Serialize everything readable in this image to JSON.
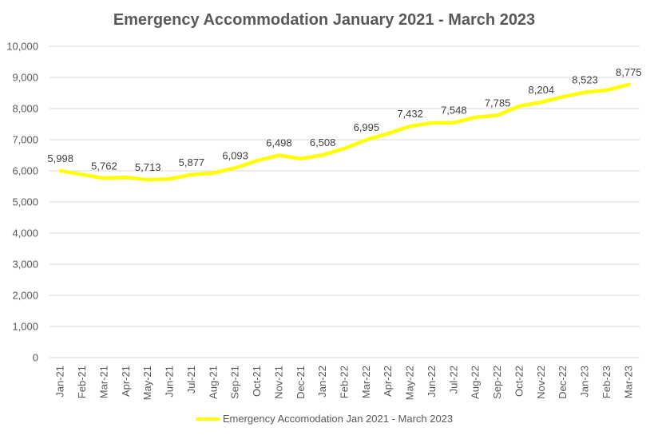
{
  "chart_data": {
    "type": "line",
    "title": "Emergency Accommodation January 2021 - March 2023",
    "xlabel": "",
    "ylabel": "",
    "ylim": [
      0,
      10000
    ],
    "yticks": [
      "0",
      "1,000",
      "2,000",
      "3,000",
      "4,000",
      "5,000",
      "6,000",
      "7,000",
      "8,000",
      "9,000",
      "10,000"
    ],
    "grid": true,
    "legend_position": "bottom",
    "categories": [
      "Jan-21",
      "Feb-21",
      "Mar-21",
      "Apr-21",
      "May-21",
      "Jun-21",
      "Jul-21",
      "Aug-21",
      "Sep-21",
      "Oct-21",
      "Nov-21",
      "Dec-21",
      "Jan-22",
      "Feb-22",
      "Mar-22",
      "Apr-22",
      "May-22",
      "Jun-22",
      "Jul-22",
      "Aug-22",
      "Sep-22",
      "Oct-22",
      "Nov-22",
      "Dec-22",
      "Jan-23",
      "Feb-23",
      "Mar-23"
    ],
    "series": [
      {
        "name": "Emergency Accomodation Jan 2021 - March 2023",
        "color": "#ffff00",
        "values": [
          5998,
          5880,
          5762,
          5790,
          5713,
          5740,
          5877,
          5930,
          6093,
          6330,
          6498,
          6390,
          6508,
          6720,
          6995,
          7200,
          7432,
          7540,
          7548,
          7720,
          7785,
          8080,
          8204,
          8380,
          8523,
          8590,
          8775
        ]
      }
    ],
    "data_labels": [
      {
        "index": 0,
        "text": "5,998"
      },
      {
        "index": 2,
        "text": "5,762"
      },
      {
        "index": 4,
        "text": "5,713"
      },
      {
        "index": 6,
        "text": "5,877"
      },
      {
        "index": 8,
        "text": "6,093"
      },
      {
        "index": 10,
        "text": "6,498"
      },
      {
        "index": 12,
        "text": "6,508"
      },
      {
        "index": 14,
        "text": "6,995"
      },
      {
        "index": 16,
        "text": "7,432"
      },
      {
        "index": 18,
        "text": "7,548"
      },
      {
        "index": 20,
        "text": "7,785"
      },
      {
        "index": 22,
        "text": "8,204"
      },
      {
        "index": 24,
        "text": "8,523"
      },
      {
        "index": 26,
        "text": "8,775"
      }
    ]
  }
}
